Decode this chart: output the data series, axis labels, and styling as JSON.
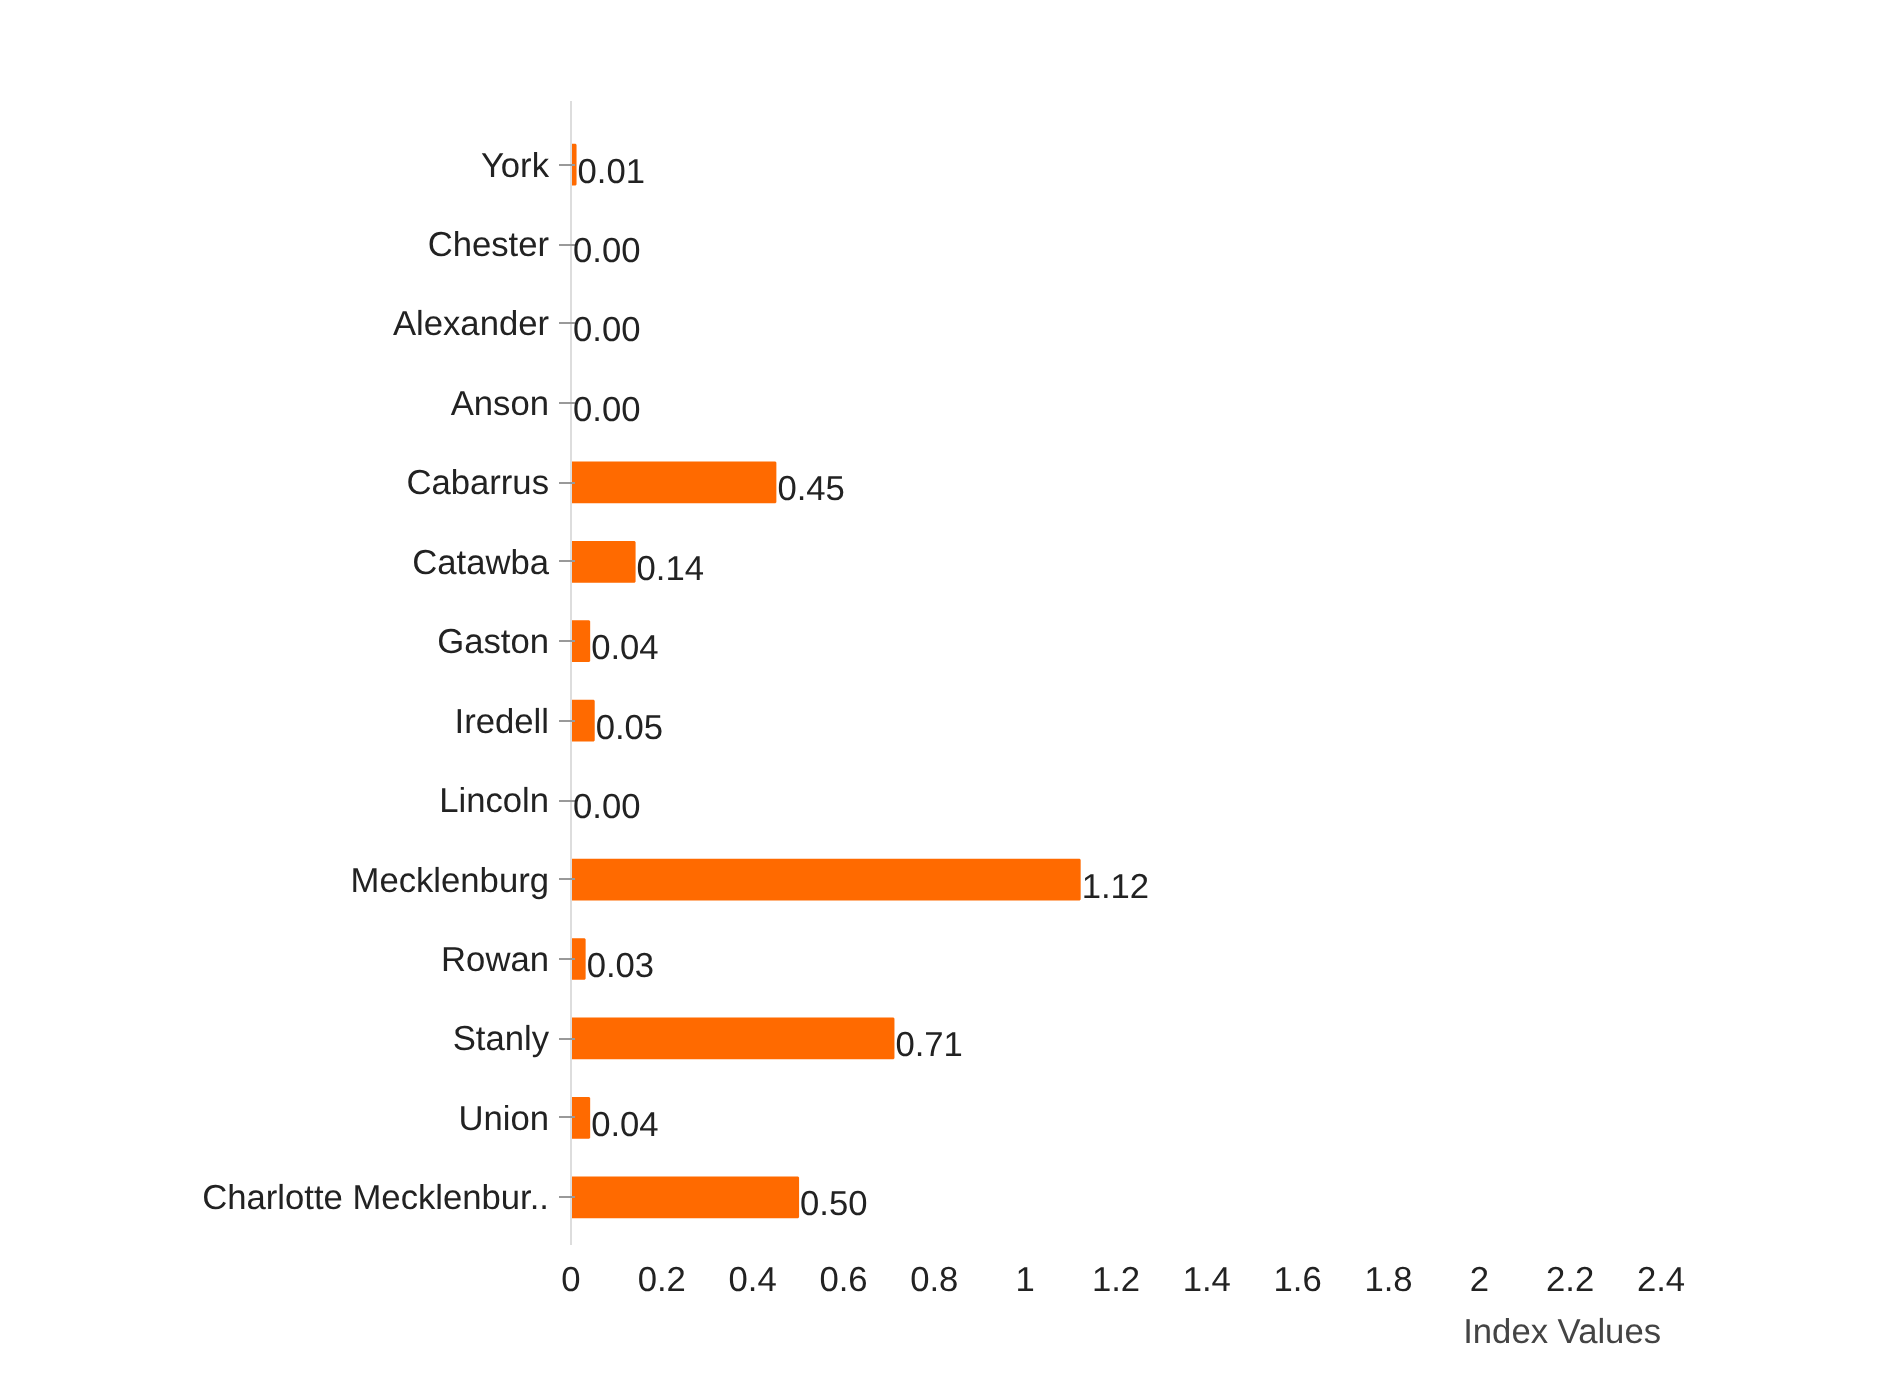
{
  "chart_data": {
    "type": "bar",
    "orientation": "horizontal",
    "xlabel": "Index Values",
    "categories": [
      "York",
      "Chester",
      "Alexander",
      "Anson",
      "Cabarrus",
      "Catawba",
      "Gaston",
      "Iredell",
      "Lincoln",
      "Mecklenburg",
      "Rowan",
      "Stanly",
      "Union",
      "Charlotte Mecklenbur.."
    ],
    "values": [
      0.01,
      0,
      0,
      0,
      0.45,
      0.14,
      0.04,
      0.05,
      0,
      1.12,
      0.03,
      0.71,
      0.04,
      0.5
    ],
    "value_labels": [
      "0.01",
      "0.00",
      "0.00",
      "0.00",
      "0.45",
      "0.14",
      "0.04",
      "0.05",
      "0.00",
      "1.12",
      "0.03",
      "0.71",
      "0.04",
      "0.50"
    ],
    "color": "#ff6a00",
    "xlim": [
      0,
      2.4
    ],
    "xticks": [
      0,
      0.2,
      0.4,
      0.6,
      0.8,
      1,
      1.2,
      1.4,
      1.6,
      1.8,
      2,
      2.2,
      2.4
    ],
    "grid": false
  }
}
